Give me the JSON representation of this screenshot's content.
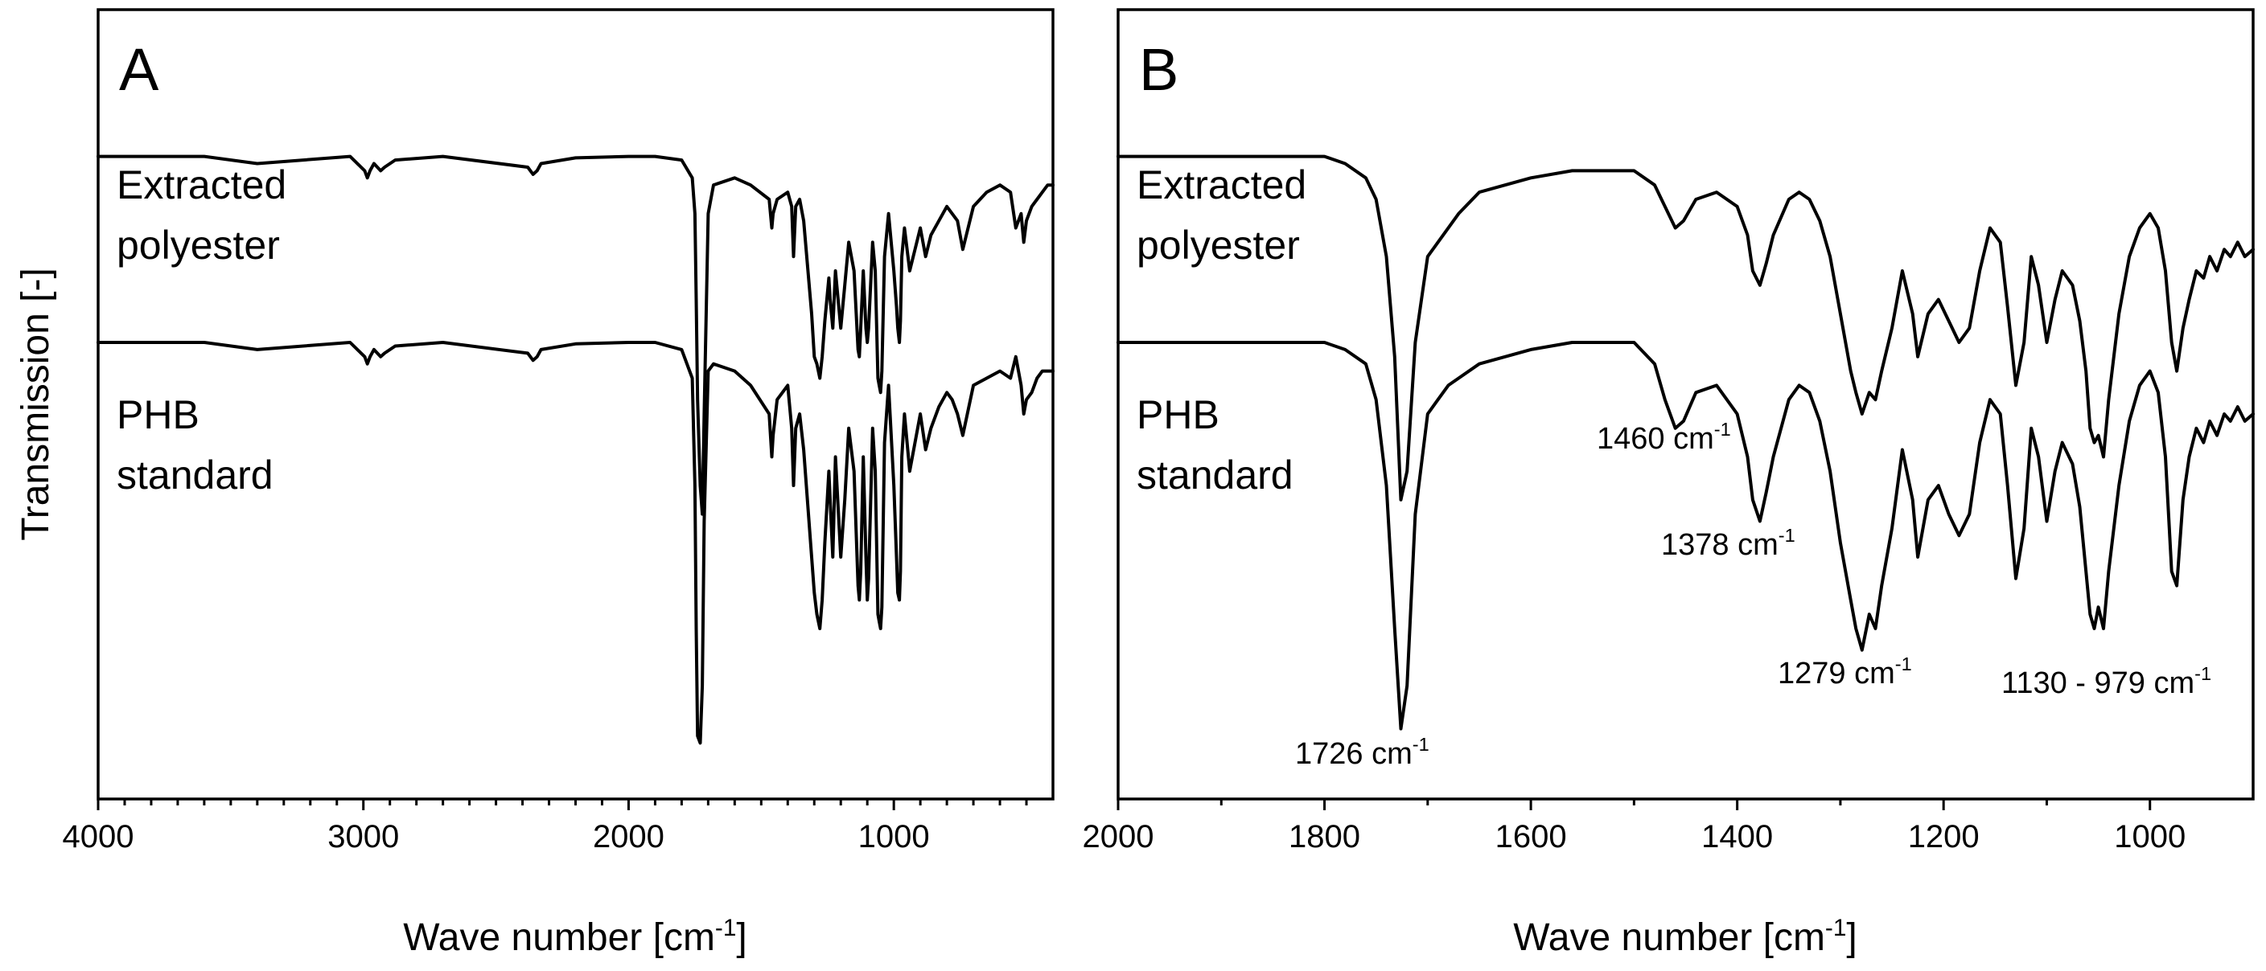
{
  "chart_data": [
    {
      "type": "line",
      "panel": "A",
      "ylabel": "Transmission [-]",
      "xlabel": "Wave number [cm",
      "xlabel_sup": "-1",
      "xlabel_tail": "]",
      "xlim": [
        4000,
        400
      ],
      "x_ticks": [
        {
          "value": 4000,
          "label": "4000"
        },
        {
          "value": 3000,
          "label": "3000"
        },
        {
          "value": 2000,
          "label": "2000"
        },
        {
          "value": 1000,
          "label": "1000"
        }
      ],
      "ylim": [
        0,
        1
      ],
      "series": [
        {
          "name": "Extracted polyester",
          "label_lines": [
            "Extracted",
            "polyester"
          ],
          "x": [
            4000,
            3600,
            3400,
            3050,
            2995,
            2985,
            2975,
            2960,
            2935,
            2920,
            2880,
            2700,
            2380,
            2360,
            2345,
            2330,
            2200,
            2000,
            1900,
            1800,
            1760,
            1750,
            1745,
            1740,
            1730,
            1722,
            1715,
            1700,
            1680,
            1600,
            1540,
            1470,
            1460,
            1455,
            1440,
            1400,
            1385,
            1378,
            1370,
            1355,
            1340,
            1310,
            1300,
            1290,
            1279,
            1270,
            1260,
            1245,
            1240,
            1230,
            1220,
            1200,
            1185,
            1170,
            1150,
            1135,
            1130,
            1125,
            1115,
            1105,
            1100,
            1095,
            1080,
            1070,
            1060,
            1055,
            1050,
            1045,
            1035,
            1020,
            1000,
            990,
            985,
            979,
            975,
            970,
            960,
            940,
            920,
            900,
            880,
            860,
            830,
            800,
            780,
            760,
            740,
            700,
            650,
            600,
            560,
            540,
            520,
            510,
            500,
            480,
            460,
            440,
            420,
            400
          ],
          "y": [
            0.86,
            0.86,
            0.85,
            0.86,
            0.84,
            0.83,
            0.84,
            0.85,
            0.84,
            0.845,
            0.855,
            0.86,
            0.845,
            0.835,
            0.84,
            0.85,
            0.858,
            0.86,
            0.86,
            0.855,
            0.83,
            0.78,
            0.66,
            0.52,
            0.4,
            0.36,
            0.5,
            0.78,
            0.82,
            0.83,
            0.82,
            0.8,
            0.76,
            0.78,
            0.8,
            0.81,
            0.79,
            0.72,
            0.79,
            0.8,
            0.77,
            0.64,
            0.58,
            0.57,
            0.55,
            0.58,
            0.63,
            0.69,
            0.66,
            0.62,
            0.7,
            0.62,
            0.68,
            0.74,
            0.7,
            0.59,
            0.58,
            0.62,
            0.7,
            0.62,
            0.6,
            0.62,
            0.74,
            0.7,
            0.55,
            0.54,
            0.53,
            0.56,
            0.72,
            0.78,
            0.7,
            0.65,
            0.62,
            0.6,
            0.63,
            0.72,
            0.76,
            0.7,
            0.73,
            0.76,
            0.72,
            0.75,
            0.77,
            0.79,
            0.78,
            0.77,
            0.73,
            0.79,
            0.81,
            0.82,
            0.81,
            0.76,
            0.78,
            0.74,
            0.77,
            0.79,
            0.8,
            0.81,
            0.82,
            0.82
          ]
        },
        {
          "name": "PHB standard",
          "label_lines": [
            "PHB",
            "standard"
          ],
          "x": [
            4000,
            3600,
            3400,
            3050,
            2995,
            2985,
            2975,
            2960,
            2935,
            2920,
            2880,
            2700,
            2380,
            2360,
            2345,
            2330,
            2200,
            2000,
            1900,
            1800,
            1760,
            1750,
            1745,
            1740,
            1730,
            1722,
            1715,
            1700,
            1680,
            1600,
            1540,
            1470,
            1460,
            1455,
            1440,
            1400,
            1385,
            1378,
            1370,
            1355,
            1340,
            1310,
            1300,
            1290,
            1279,
            1270,
            1260,
            1245,
            1240,
            1230,
            1220,
            1200,
            1185,
            1170,
            1150,
            1135,
            1130,
            1125,
            1115,
            1105,
            1100,
            1095,
            1080,
            1070,
            1060,
            1055,
            1050,
            1045,
            1035,
            1020,
            1000,
            990,
            985,
            979,
            975,
            970,
            960,
            940,
            920,
            900,
            880,
            860,
            830,
            800,
            780,
            760,
            740,
            700,
            650,
            600,
            560,
            540,
            520,
            510,
            500,
            480,
            460,
            440,
            420,
            400
          ],
          "y": [
            0.6,
            0.6,
            0.59,
            0.6,
            0.58,
            0.57,
            0.58,
            0.59,
            0.58,
            0.585,
            0.595,
            0.6,
            0.585,
            0.575,
            0.58,
            0.59,
            0.598,
            0.6,
            0.6,
            0.59,
            0.55,
            0.4,
            0.2,
            0.05,
            0.04,
            0.12,
            0.35,
            0.56,
            0.57,
            0.56,
            0.54,
            0.5,
            0.44,
            0.47,
            0.52,
            0.54,
            0.48,
            0.4,
            0.48,
            0.5,
            0.45,
            0.3,
            0.25,
            0.22,
            0.2,
            0.24,
            0.32,
            0.42,
            0.38,
            0.3,
            0.44,
            0.3,
            0.38,
            0.48,
            0.42,
            0.26,
            0.24,
            0.28,
            0.44,
            0.3,
            0.24,
            0.27,
            0.48,
            0.42,
            0.22,
            0.21,
            0.2,
            0.23,
            0.46,
            0.54,
            0.4,
            0.3,
            0.25,
            0.24,
            0.28,
            0.44,
            0.5,
            0.42,
            0.46,
            0.5,
            0.45,
            0.48,
            0.51,
            0.53,
            0.52,
            0.5,
            0.47,
            0.54,
            0.55,
            0.56,
            0.55,
            0.58,
            0.54,
            0.5,
            0.52,
            0.53,
            0.55,
            0.56,
            0.56,
            0.56
          ]
        }
      ]
    },
    {
      "type": "line",
      "panel": "B",
      "xlabel": "Wave number [cm",
      "xlabel_sup": "-1",
      "xlabel_tail": "]",
      "xlim": [
        2000,
        900
      ],
      "x_ticks": [
        {
          "value": 2000,
          "label": "2000"
        },
        {
          "value": 1800,
          "label": "1800"
        },
        {
          "value": 1600,
          "label": "1600"
        },
        {
          "value": 1400,
          "label": "1400"
        },
        {
          "value": 1200,
          "label": "1200"
        },
        {
          "value": 1000,
          "label": "1000"
        }
      ],
      "ylim": [
        0,
        1
      ],
      "annotations": [
        {
          "text": "1726 cm",
          "sup": "-1",
          "x": 1726
        },
        {
          "text": "1460 cm",
          "sup": "-1",
          "x": 1460
        },
        {
          "text": "1378 cm",
          "sup": "-1",
          "x": 1378
        },
        {
          "text": "1279 cm",
          "sup": "-1",
          "x": 1279
        },
        {
          "text": "1130 - 979 cm",
          "sup": "-1",
          "x": 1054
        }
      ],
      "series": [
        {
          "name": "Extracted polyester",
          "label_lines": [
            "Extracted",
            "polyester"
          ],
          "x": [
            2000,
            1900,
            1800,
            1780,
            1760,
            1750,
            1740,
            1732,
            1726,
            1720,
            1712,
            1700,
            1690,
            1680,
            1670,
            1650,
            1600,
            1560,
            1500,
            1480,
            1470,
            1460,
            1452,
            1440,
            1420,
            1400,
            1390,
            1385,
            1378,
            1372,
            1365,
            1350,
            1340,
            1330,
            1320,
            1310,
            1300,
            1290,
            1285,
            1279,
            1272,
            1266,
            1260,
            1250,
            1240,
            1230,
            1225,
            1215,
            1205,
            1195,
            1185,
            1175,
            1165,
            1155,
            1145,
            1138,
            1130,
            1122,
            1115,
            1108,
            1100,
            1092,
            1085,
            1075,
            1068,
            1062,
            1058,
            1054,
            1050,
            1045,
            1040,
            1030,
            1020,
            1010,
            1000,
            992,
            985,
            979,
            974,
            968,
            962,
            955,
            948,
            942,
            935,
            928,
            922,
            915,
            908,
            900
          ],
          "y": [
            0.86,
            0.86,
            0.86,
            0.85,
            0.83,
            0.8,
            0.72,
            0.58,
            0.38,
            0.42,
            0.6,
            0.72,
            0.74,
            0.76,
            0.78,
            0.81,
            0.83,
            0.84,
            0.84,
            0.82,
            0.79,
            0.76,
            0.77,
            0.8,
            0.81,
            0.79,
            0.75,
            0.7,
            0.68,
            0.71,
            0.75,
            0.8,
            0.81,
            0.8,
            0.77,
            0.72,
            0.64,
            0.56,
            0.53,
            0.5,
            0.53,
            0.52,
            0.56,
            0.62,
            0.7,
            0.64,
            0.58,
            0.64,
            0.66,
            0.63,
            0.6,
            0.62,
            0.7,
            0.76,
            0.74,
            0.65,
            0.54,
            0.6,
            0.72,
            0.68,
            0.6,
            0.66,
            0.7,
            0.68,
            0.63,
            0.56,
            0.48,
            0.46,
            0.47,
            0.44,
            0.52,
            0.64,
            0.72,
            0.76,
            0.78,
            0.76,
            0.7,
            0.6,
            0.56,
            0.62,
            0.66,
            0.7,
            0.69,
            0.72,
            0.7,
            0.73,
            0.72,
            0.74,
            0.72,
            0.73
          ]
        },
        {
          "name": "PHB standard",
          "label_lines": [
            "PHB",
            "standard"
          ],
          "x": [
            2000,
            1900,
            1800,
            1780,
            1760,
            1750,
            1740,
            1732,
            1726,
            1720,
            1712,
            1700,
            1690,
            1680,
            1670,
            1650,
            1600,
            1560,
            1500,
            1480,
            1470,
            1460,
            1452,
            1440,
            1420,
            1400,
            1390,
            1385,
            1378,
            1372,
            1365,
            1350,
            1340,
            1330,
            1320,
            1310,
            1300,
            1290,
            1285,
            1279,
            1272,
            1266,
            1260,
            1250,
            1240,
            1230,
            1225,
            1215,
            1205,
            1195,
            1185,
            1175,
            1165,
            1155,
            1145,
            1138,
            1130,
            1122,
            1115,
            1108,
            1100,
            1092,
            1085,
            1075,
            1068,
            1062,
            1058,
            1054,
            1050,
            1045,
            1040,
            1030,
            1020,
            1010,
            1000,
            992,
            985,
            979,
            974,
            968,
            962,
            955,
            948,
            942,
            935,
            928,
            922,
            915,
            908,
            900
          ],
          "y": [
            0.6,
            0.6,
            0.6,
            0.59,
            0.57,
            0.52,
            0.4,
            0.2,
            0.06,
            0.12,
            0.36,
            0.5,
            0.52,
            0.54,
            0.55,
            0.57,
            0.59,
            0.6,
            0.6,
            0.57,
            0.52,
            0.48,
            0.49,
            0.53,
            0.54,
            0.5,
            0.44,
            0.38,
            0.35,
            0.39,
            0.44,
            0.52,
            0.54,
            0.53,
            0.49,
            0.42,
            0.32,
            0.24,
            0.2,
            0.17,
            0.22,
            0.2,
            0.26,
            0.34,
            0.45,
            0.38,
            0.3,
            0.38,
            0.4,
            0.36,
            0.33,
            0.36,
            0.46,
            0.52,
            0.5,
            0.4,
            0.27,
            0.34,
            0.48,
            0.44,
            0.35,
            0.42,
            0.46,
            0.43,
            0.37,
            0.28,
            0.22,
            0.2,
            0.23,
            0.2,
            0.28,
            0.4,
            0.49,
            0.54,
            0.56,
            0.53,
            0.44,
            0.28,
            0.26,
            0.38,
            0.44,
            0.48,
            0.46,
            0.49,
            0.47,
            0.5,
            0.49,
            0.51,
            0.49,
            0.5
          ]
        }
      ]
    }
  ]
}
